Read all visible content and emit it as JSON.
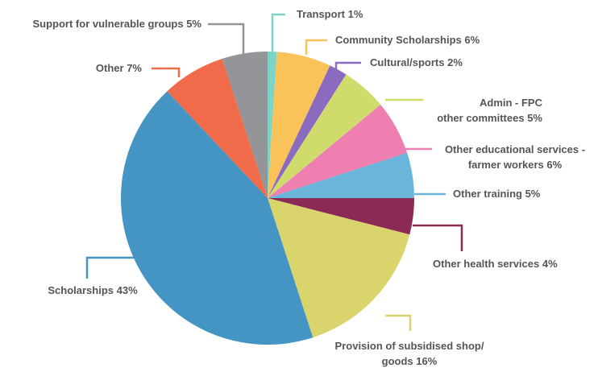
{
  "chart_data": {
    "type": "pie",
    "categories": [
      "Transport",
      "Community Scholarships",
      "Cultural/sports",
      "Admin - FPC\nother committees",
      "Other educational services -\nfarmer workers",
      "Other training",
      "Other health services",
      "Provision of subsidised shop/\ngoods",
      "Scholarships",
      "Other",
      "Support for vulnerable groups"
    ],
    "values": [
      1,
      6,
      2,
      5,
      6,
      5,
      4,
      16,
      43,
      7,
      5
    ],
    "value_labels": [
      "1%",
      "6%",
      "2%",
      "5%",
      "6%",
      "5%",
      "4%",
      "16%",
      "43%",
      "7%",
      "5%"
    ],
    "colors": [
      "#7fd3c6",
      "#f9c35a",
      "#8a6bbf",
      "#cfdc6c",
      "#ef7fb0",
      "#6ab6da",
      "#8a2a55",
      "#d9d46b",
      "#4494c4",
      "#ef6b4a",
      "#949598"
    ]
  }
}
